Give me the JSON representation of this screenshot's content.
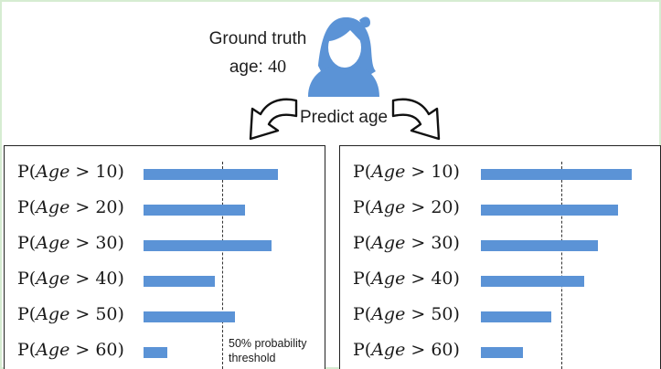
{
  "header": {
    "ground_truth_label": "Ground truth",
    "age_prefix": "age: ",
    "age_value": "40",
    "predict_label": "Predict age"
  },
  "left_panel": {
    "bars": [
      {
        "label_pre": "P(",
        "label_var": "Age",
        "label_op": " > ",
        "label_num": "10",
        "prob": 0.85
      },
      {
        "label_pre": "P(",
        "label_var": "Age",
        "label_op": " > ",
        "label_num": "20",
        "prob": 0.64
      },
      {
        "label_pre": "P(",
        "label_var": "Age",
        "label_op": " > ",
        "label_num": "30",
        "prob": 0.81
      },
      {
        "label_pre": "P(",
        "label_var": "Age",
        "label_op": " > ",
        "label_num": "40",
        "prob": 0.45
      },
      {
        "label_pre": "P(",
        "label_var": "Age",
        "label_op": " > ",
        "label_num": "50",
        "prob": 0.58
      },
      {
        "label_pre": "P(",
        "label_var": "Age",
        "label_op": " > ",
        "label_num": "60",
        "prob": 0.15
      }
    ],
    "threshold_line1": "50% probability",
    "threshold_line2": "threshold"
  },
  "right_panel": {
    "bars": [
      {
        "label_pre": "P(",
        "label_var": "Age",
        "label_op": " > ",
        "label_num": "10",
        "prob": 0.94
      },
      {
        "label_pre": "P(",
        "label_var": "Age",
        "label_op": " > ",
        "label_num": "20",
        "prob": 0.85
      },
      {
        "label_pre": "P(",
        "label_var": "Age",
        "label_op": " > ",
        "label_num": "30",
        "prob": 0.73
      },
      {
        "label_pre": "P(",
        "label_var": "Age",
        "label_op": " > ",
        "label_num": "40",
        "prob": 0.64
      },
      {
        "label_pre": "P(",
        "label_var": "Age",
        "label_op": " > ",
        "label_num": "50",
        "prob": 0.44
      },
      {
        "label_pre": "P(",
        "label_var": "Age",
        "label_op": " > ",
        "label_num": "60",
        "prob": 0.26
      }
    ]
  },
  "colors": {
    "bar": "#5b93d6",
    "avatar": "#5b93d6",
    "frame": "#d6ecd2"
  },
  "icons": {
    "avatar": "person-avatar-icon",
    "arrow_left": "curved-arrow-left-icon",
    "arrow_right": "curved-arrow-right-icon"
  }
}
